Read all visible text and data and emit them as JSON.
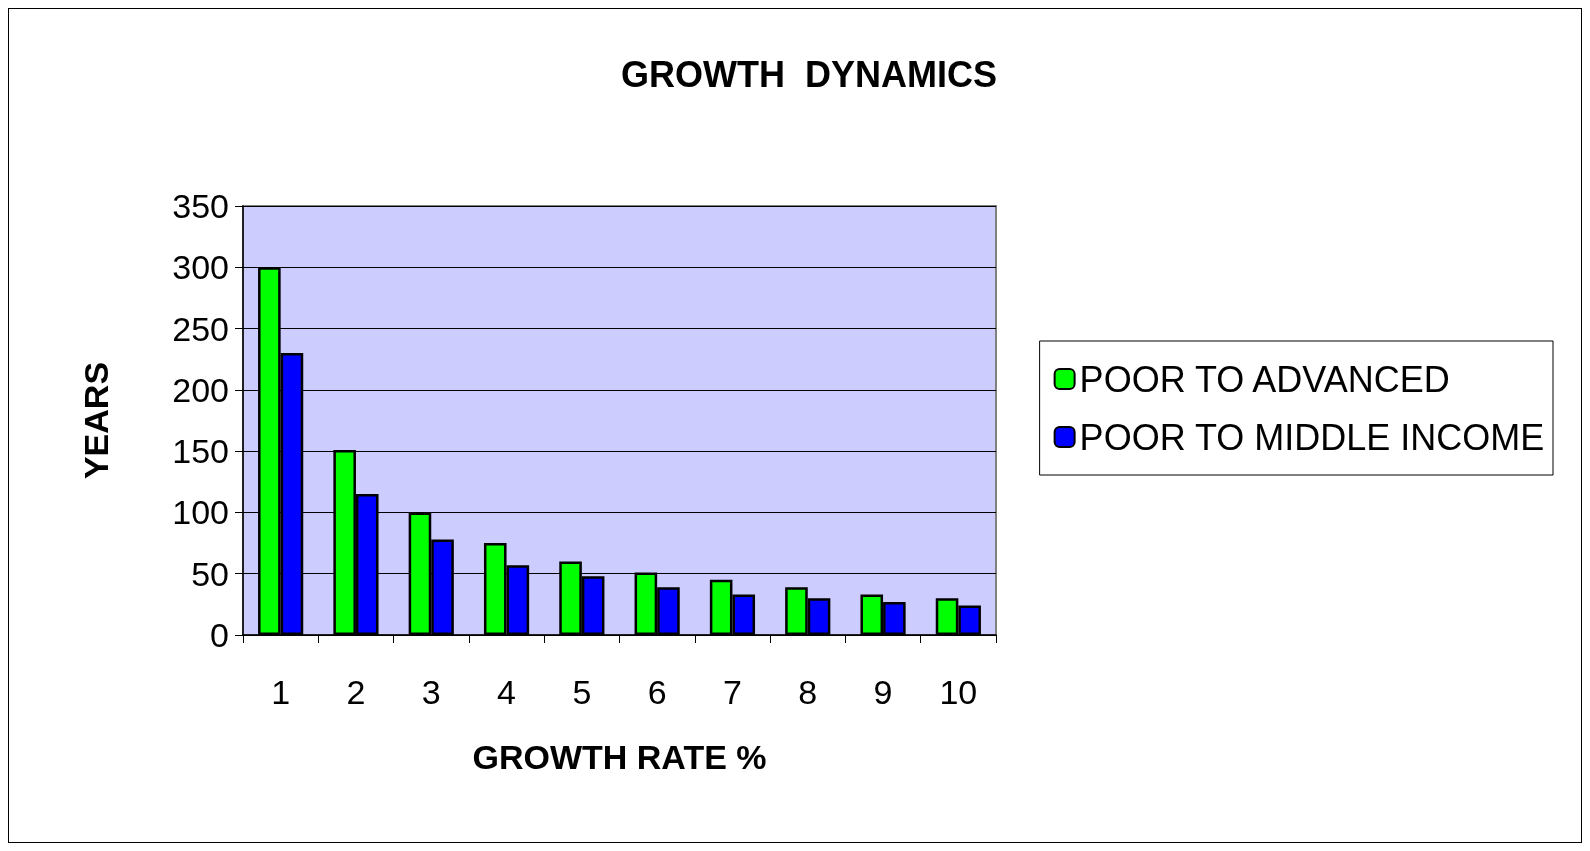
{
  "chart_data": {
    "type": "bar",
    "title": "GROWTH  DYNAMICS",
    "xlabel": "GROWTH RATE %",
    "ylabel": "YEARS",
    "categories": [
      "1",
      "2",
      "3",
      "4",
      "5",
      "6",
      "7",
      "8",
      "9",
      "10"
    ],
    "series": [
      {
        "name": "POOR TO ADVANCED",
        "color": "#00ff00",
        "values": [
          300,
          151,
          100,
          75,
          60,
          51,
          45,
          39,
          33,
          30
        ]
      },
      {
        "name": "POOR TO MIDDLE INCOME",
        "color": "#0000ff",
        "values": [
          230,
          115,
          78,
          57,
          48,
          39,
          33,
          30,
          27,
          24
        ]
      }
    ],
    "ylim": [
      0,
      350
    ],
    "yticks": [
      0,
      50,
      100,
      150,
      200,
      250,
      300,
      350
    ],
    "grid": "y",
    "legend": "right"
  }
}
